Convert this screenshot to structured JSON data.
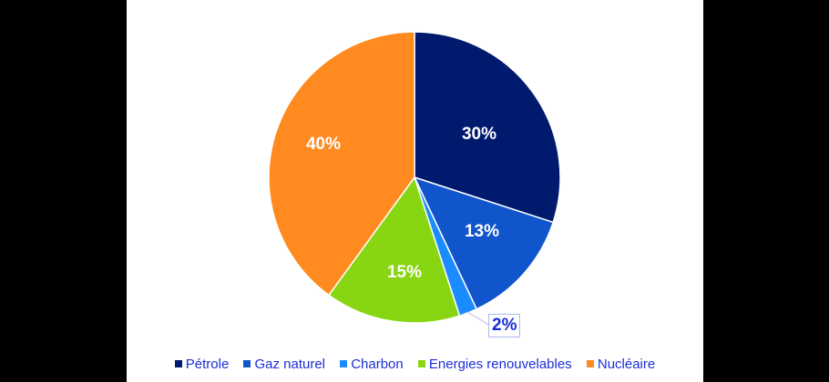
{
  "chart_data": {
    "type": "pie",
    "title": "",
    "categories": [
      "Pétrole",
      "Gaz naturel",
      "Charbon",
      "Energies renouvelables",
      "Nucléaire"
    ],
    "values": [
      30,
      13,
      2,
      15,
      40
    ],
    "labels": [
      "30%",
      "13%",
      "2%",
      "15%",
      "40%"
    ],
    "colors": [
      "#001a6e",
      "#1155cc",
      "#1a8cff",
      "#88d611",
      "#ff8a1f"
    ],
    "start_angle_deg": 0,
    "direction": "clockwise",
    "legend_position": "bottom"
  },
  "legend": {
    "items": [
      {
        "label": "Pétrole",
        "color": "#001a6e"
      },
      {
        "label": "Gaz naturel",
        "color": "#1155cc"
      },
      {
        "label": "Charbon",
        "color": "#1a8cff"
      },
      {
        "label": "Energies renouvelables",
        "color": "#88d611"
      },
      {
        "label": "Nucléaire",
        "color": "#ff8a1f"
      }
    ]
  },
  "slice_labels": {
    "petrole": "30%",
    "gaz": "13%",
    "charbon": "2%",
    "renouvelables": "15%",
    "nucleaire": "40%"
  }
}
